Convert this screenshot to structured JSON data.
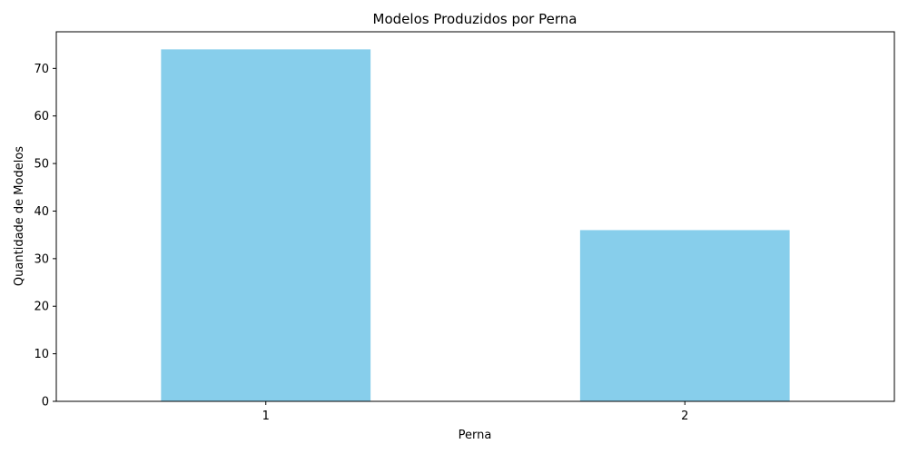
{
  "chart_data": {
    "type": "bar",
    "title": "Modelos Produzidos por Perna",
    "xlabel": "Perna",
    "ylabel": "Quantidade de Modelos",
    "categories": [
      "1",
      "2"
    ],
    "values": [
      74,
      36
    ],
    "ylim": [
      0,
      77.7
    ],
    "yticks": [
      0,
      10,
      20,
      30,
      40,
      50,
      60,
      70
    ],
    "bar_color": "#87ceeb",
    "grid": false,
    "legend": "none"
  }
}
